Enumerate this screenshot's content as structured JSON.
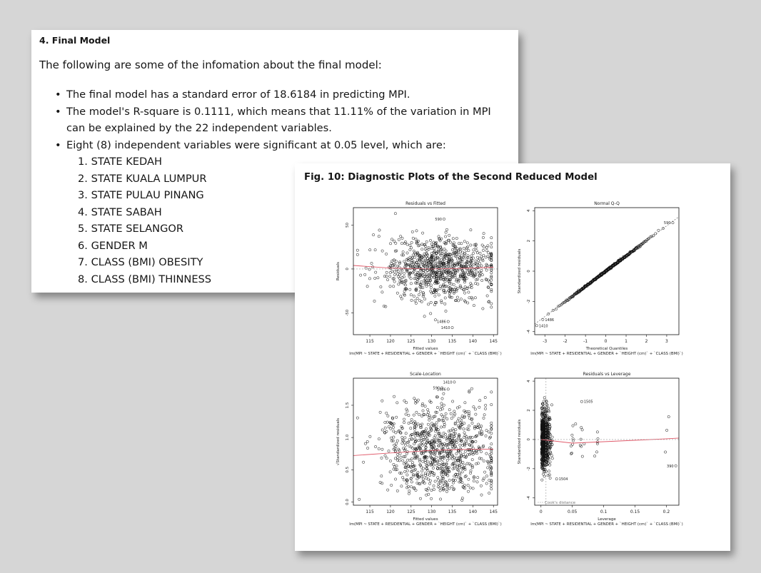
{
  "final_model": {
    "heading": "4. Final Model",
    "intro": "The following are some of the infomation about the final model:",
    "bullets": [
      "The final model has a standard error of 18.6184 in predicting MPI.",
      "The model's R-square is 0.1111, which means that 11.11% of the variation in MPI can be explained by the 22 independent variables.",
      "Eight (8) independent variables were significant at 0.05 level, which are:"
    ],
    "significant_variables": [
      "1. STATE KEDAH",
      "2. STATE KUALA LUMPUR",
      "3. STATE PULAU PINANG",
      "4. STATE SABAH",
      "5. STATE SELANGOR",
      "6. GENDER M",
      "7. CLASS (BMI) OBESITY",
      "8. CLASS (BMI) THINNESS"
    ]
  },
  "figure": {
    "title": "Fig. 10: Diagnostic Plots of the Second Reduced Model",
    "model_formula": "lm(MPI ~ STATE + RESIDENTIAL + GENDER + `HEIGHT (cm)` + `CLASS (BMI)`)"
  },
  "chart_data": [
    {
      "type": "scatter",
      "title": "Residuals vs Fitted",
      "xlabel": "Fitted values",
      "ylabel": "Residuals",
      "subtitle": "lm(MPI ~ STATE + RESIDENTIAL + GENDER + `HEIGHT (cm)` + `CLASS (BMI)`)",
      "xlim": [
        111,
        146
      ],
      "ylim": [
        -75,
        70
      ],
      "xticks": [
        115,
        120,
        125,
        130,
        135,
        140,
        145
      ],
      "yticks": [
        -50,
        0,
        50
      ],
      "n_points": 900,
      "point_color": "#111111",
      "smooth_color": "#e05a6a",
      "smooth_line": {
        "x": [
          111,
          120,
          130,
          140,
          145
        ],
        "y": [
          4,
          1,
          0,
          1,
          2
        ]
      },
      "outliers": [
        {
          "label": "590",
          "x": 133,
          "y": 57
        },
        {
          "label": "1486",
          "x": 134,
          "y": -60
        },
        {
          "label": "1410",
          "x": 135,
          "y": -67
        }
      ]
    },
    {
      "type": "scatter",
      "title": "Normal Q-Q",
      "xlabel": "Theoretical Quantiles",
      "ylabel": "Standardized residuals",
      "subtitle": "lm(MPI ~ STATE + RESIDENTIAL + GENDER + `HEIGHT (cm)` + `CLASS (BMI)`)",
      "xlim": [
        -3.5,
        3.6
      ],
      "ylim": [
        -4.2,
        4.2
      ],
      "xticks": [
        -3,
        -2,
        -1,
        0,
        1,
        2,
        3
      ],
      "yticks": [
        -4,
        -2,
        0,
        2,
        4
      ],
      "reference_line": {
        "x": [
          -3.5,
          3.6
        ],
        "y": [
          -3.5,
          3.6
        ]
      },
      "line_color": "#7a7a7a",
      "outliers": [
        {
          "label": "590",
          "x": 3.3,
          "y": 3.2
        },
        {
          "label": "1486",
          "x": -3.1,
          "y": -3.2
        },
        {
          "label": "1410",
          "x": -3.4,
          "y": -3.6
        }
      ]
    },
    {
      "type": "scatter",
      "title": "Scale-Location",
      "xlabel": "Fitted values",
      "ylabel": "√Standardized residuals",
      "subtitle": "lm(MPI ~ STATE + RESIDENTIAL + GENDER + `HEIGHT (cm)` + `CLASS (BMI)`)",
      "xlim": [
        111,
        146
      ],
      "ylim": [
        -0.05,
        1.92
      ],
      "xticks": [
        115,
        120,
        125,
        130,
        135,
        140,
        145
      ],
      "yticks": [
        0.0,
        0.5,
        1.0,
        1.5
      ],
      "n_points": 900,
      "smooth_color": "#e05a6a",
      "smooth_line": {
        "x": [
          111,
          120,
          130,
          140,
          145
        ],
        "y": [
          0.72,
          0.76,
          0.8,
          0.82,
          0.82
        ]
      },
      "outliers": [
        {
          "label": "1410",
          "x": 135.5,
          "y": 1.86
        },
        {
          "label": "590",
          "x": 132.5,
          "y": 1.77
        },
        {
          "label": "1486",
          "x": 134,
          "y": 1.75
        }
      ]
    },
    {
      "type": "scatter",
      "title": "Residuals vs Leverage",
      "xlabel": "Leverage",
      "ylabel": "Standardized residuals",
      "subtitle": "lm(MPI ~ STATE + RESIDENTIAL + GENDER + `HEIGHT (cm)` + `CLASS (BMI)`)",
      "xlim": [
        -0.01,
        0.22
      ],
      "ylim": [
        -4.5,
        4.2
      ],
      "xticks": [
        0.0,
        0.05,
        0.1,
        0.15,
        0.2
      ],
      "yticks": [
        -4,
        -2,
        0,
        2,
        4
      ],
      "legend": "Cook's distance",
      "legend_position": "bottom-left",
      "smooth_color": "#e05a6a",
      "smooth_line": {
        "x": [
          0.0,
          0.05,
          0.1,
          0.15,
          0.2,
          0.22
        ],
        "y": [
          0.0,
          -0.25,
          -0.15,
          -0.05,
          0.05,
          0.1
        ]
      },
      "outliers": [
        {
          "label": "1505",
          "x": 0.065,
          "y": 2.6
        },
        {
          "label": "1504",
          "x": 0.025,
          "y": -2.7
        },
        {
          "label": "390",
          "x": 0.215,
          "y": -1.8
        }
      ]
    }
  ]
}
